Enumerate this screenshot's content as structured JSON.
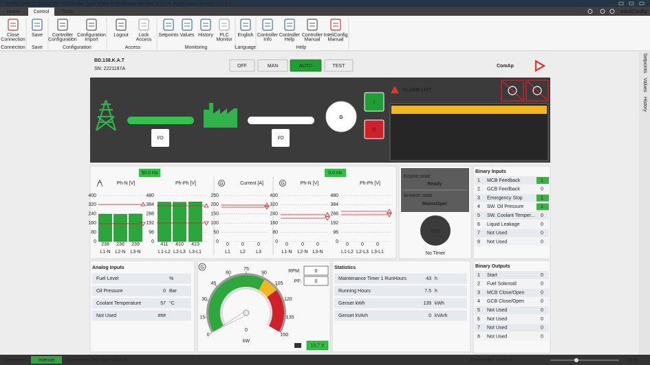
{
  "title_bar": {
    "app": "InteliConfig [2.33.0.103]",
    "controller_type": "Controller Type (SW): IL4",
    "software_version": "Software Version: 1.2.2.1",
    "application_version": "Application Version: 1.2.2.1"
  },
  "menu": {
    "tabs": [
      "Home",
      "Control",
      "Tools"
    ],
    "active": 1,
    "brand": "InteliConfig"
  },
  "ribbon": {
    "groups": [
      {
        "label": "Connection",
        "items": [
          [
            "Close",
            "Connection"
          ]
        ]
      },
      {
        "label": "Save",
        "items": [
          [
            "Save"
          ]
        ]
      },
      {
        "label": "Configuration",
        "items": [
          [
            "Controller",
            "Configuration"
          ],
          [
            "Configuration",
            "Import"
          ]
        ]
      },
      {
        "label": "Access",
        "items": [
          [
            "Logout"
          ],
          [
            "Lock",
            "Access"
          ]
        ]
      },
      {
        "label": "Monitoring",
        "items": [
          [
            "Setpoints"
          ],
          [
            "Values"
          ],
          [
            "History"
          ],
          [
            "PLC",
            "Monitor"
          ]
        ]
      },
      {
        "label": "Language",
        "items": [
          [
            "English"
          ]
        ]
      },
      {
        "label": "Help",
        "items": [
          [
            "Controller",
            "Info"
          ],
          [
            "Controller",
            "Help"
          ],
          [
            "Controller",
            "Manual"
          ],
          [
            "InteliConfig",
            "Manual"
          ]
        ]
      }
    ]
  },
  "side_tabs": [
    "Setpoints",
    "Values",
    "History"
  ],
  "device": {
    "name": "BD.138.K.A.T",
    "serial": "SN: 2221187A"
  },
  "modes": {
    "buttons": [
      "OFF",
      "MAN",
      "AUTO",
      "TEST"
    ],
    "active": 2
  },
  "logo": "ComAp",
  "scada": {
    "mains_breaker": "I/O",
    "generator_breaker": "I/O",
    "generator": "G",
    "start": "I",
    "stop": "O",
    "alarm_title": "ALARM LIST"
  },
  "meters": {
    "mains_frequency": "50.0 Hz",
    "generator_frequency": "0.0 Hz",
    "groups": [
      {
        "title": "Ph-N [V]",
        "ticks": [
          0,
          80,
          160,
          240,
          320,
          400
        ],
        "labels": [
          "L1-N",
          "L2-N",
          "L3-N"
        ],
        "values": [
          238,
          236,
          239
        ]
      },
      {
        "title": "Ph-Ph [V]",
        "ticks": [
          0,
          96,
          192,
          288,
          384,
          480
        ],
        "labels": [
          "L1-L2",
          "L2-L3",
          "L3-L1"
        ],
        "values": [
          411,
          410,
          413
        ]
      },
      {
        "title": "Current [A]",
        "ticks": [
          0,
          50,
          100,
          150,
          200,
          250
        ],
        "labels": [
          "L1",
          "L2",
          "L3"
        ],
        "values": [
          0,
          0,
          0
        ]
      },
      {
        "title": "Ph-N [V]",
        "ticks": [
          0,
          80,
          160,
          240,
          320,
          400
        ],
        "labels": [
          "L1-N",
          "L2-N",
          "L3-N"
        ],
        "values": [
          0,
          0,
          0
        ]
      },
      {
        "title": "Ph-Ph [V]",
        "ticks": [
          0,
          96,
          192,
          288,
          384,
          480
        ],
        "labels": [
          "L1-L2",
          "L2-L3",
          "L3-L1"
        ],
        "values": [
          0,
          0,
          0
        ]
      }
    ]
  },
  "engine": {
    "state_label": "Engine state",
    "state": "Ready",
    "breaker_label": "Breaker state",
    "breaker": "MainsOper",
    "timer": "0:00",
    "timer_label": "No Timer"
  },
  "binary_inputs": {
    "title": "Binary Inputs",
    "rows": [
      {
        "no": 1,
        "name": "MCB Feedback",
        "value": 1
      },
      {
        "no": 2,
        "name": "GCB Feedback",
        "value": 0
      },
      {
        "no": 3,
        "name": "Emergency Stop",
        "value": 1
      },
      {
        "no": 4,
        "name": "SW. Oil Pressure",
        "value": 1
      },
      {
        "no": 5,
        "name": "SW. Coolant Temper...",
        "value": 0
      },
      {
        "no": 6,
        "name": "Liquid Leakage",
        "value": 0
      },
      {
        "no": 7,
        "name": "Not Used",
        "value": 0
      },
      {
        "no": 8,
        "name": "Not Used",
        "value": 0
      }
    ]
  },
  "analog_inputs": {
    "title": "Analog Inputs",
    "rows": [
      {
        "name": "Fuel Level",
        "unit": "%"
      },
      {
        "name": "Oil Pressure",
        "value": 0,
        "unit": "Bar"
      },
      {
        "name": "Coolant Temperature",
        "value": 57,
        "unit": "°C"
      },
      {
        "name": "Not Used",
        "value": "###"
      }
    ]
  },
  "gauge": {
    "symbol": "G",
    "ticks": [
      0,
      15,
      30,
      45,
      60,
      75,
      90,
      105,
      120,
      135,
      150
    ],
    "value": 0,
    "unit": "kW",
    "rpm_label": "RPM:",
    "rpm": 0,
    "pf_label": "PF:",
    "pf": 0,
    "battery": "13.7 V"
  },
  "statistics": {
    "title": "Statistics",
    "rows": [
      {
        "name": "Maintenance Timer 1 RunHours",
        "value": 43,
        "unit": "h"
      },
      {
        "name": "Running Hours",
        "value": 7.5,
        "unit": "h"
      },
      {
        "name": "Genset kWh",
        "value": 139,
        "unit": "kWh"
      },
      {
        "name": "Genset kVArh",
        "value": 0,
        "unit": "kVArh"
      }
    ]
  },
  "binary_outputs": {
    "title": "Binary Outputs",
    "rows": [
      {
        "no": 1,
        "name": "Start",
        "value": 0
      },
      {
        "no": 2,
        "name": "Fuel Solenoid",
        "value": 0
      },
      {
        "no": 3,
        "name": "MCB Close/Open",
        "value": 0
      },
      {
        "no": 4,
        "name": "GCB Close/Open",
        "value": 0
      },
      {
        "no": 5,
        "name": "Not Used",
        "value": 0
      },
      {
        "no": 6,
        "name": "Not Used",
        "value": 0
      },
      {
        "no": 7,
        "name": "Not Used",
        "value": 0
      },
      {
        "no": 8,
        "name": "Not Used",
        "value": 0
      }
    ]
  },
  "status_bar": {
    "connection_label": "Connection:",
    "connection": "Internet",
    "application": "Application: Standard AMF25",
    "state": "Connection opened",
    "zoom": "136 %"
  }
}
